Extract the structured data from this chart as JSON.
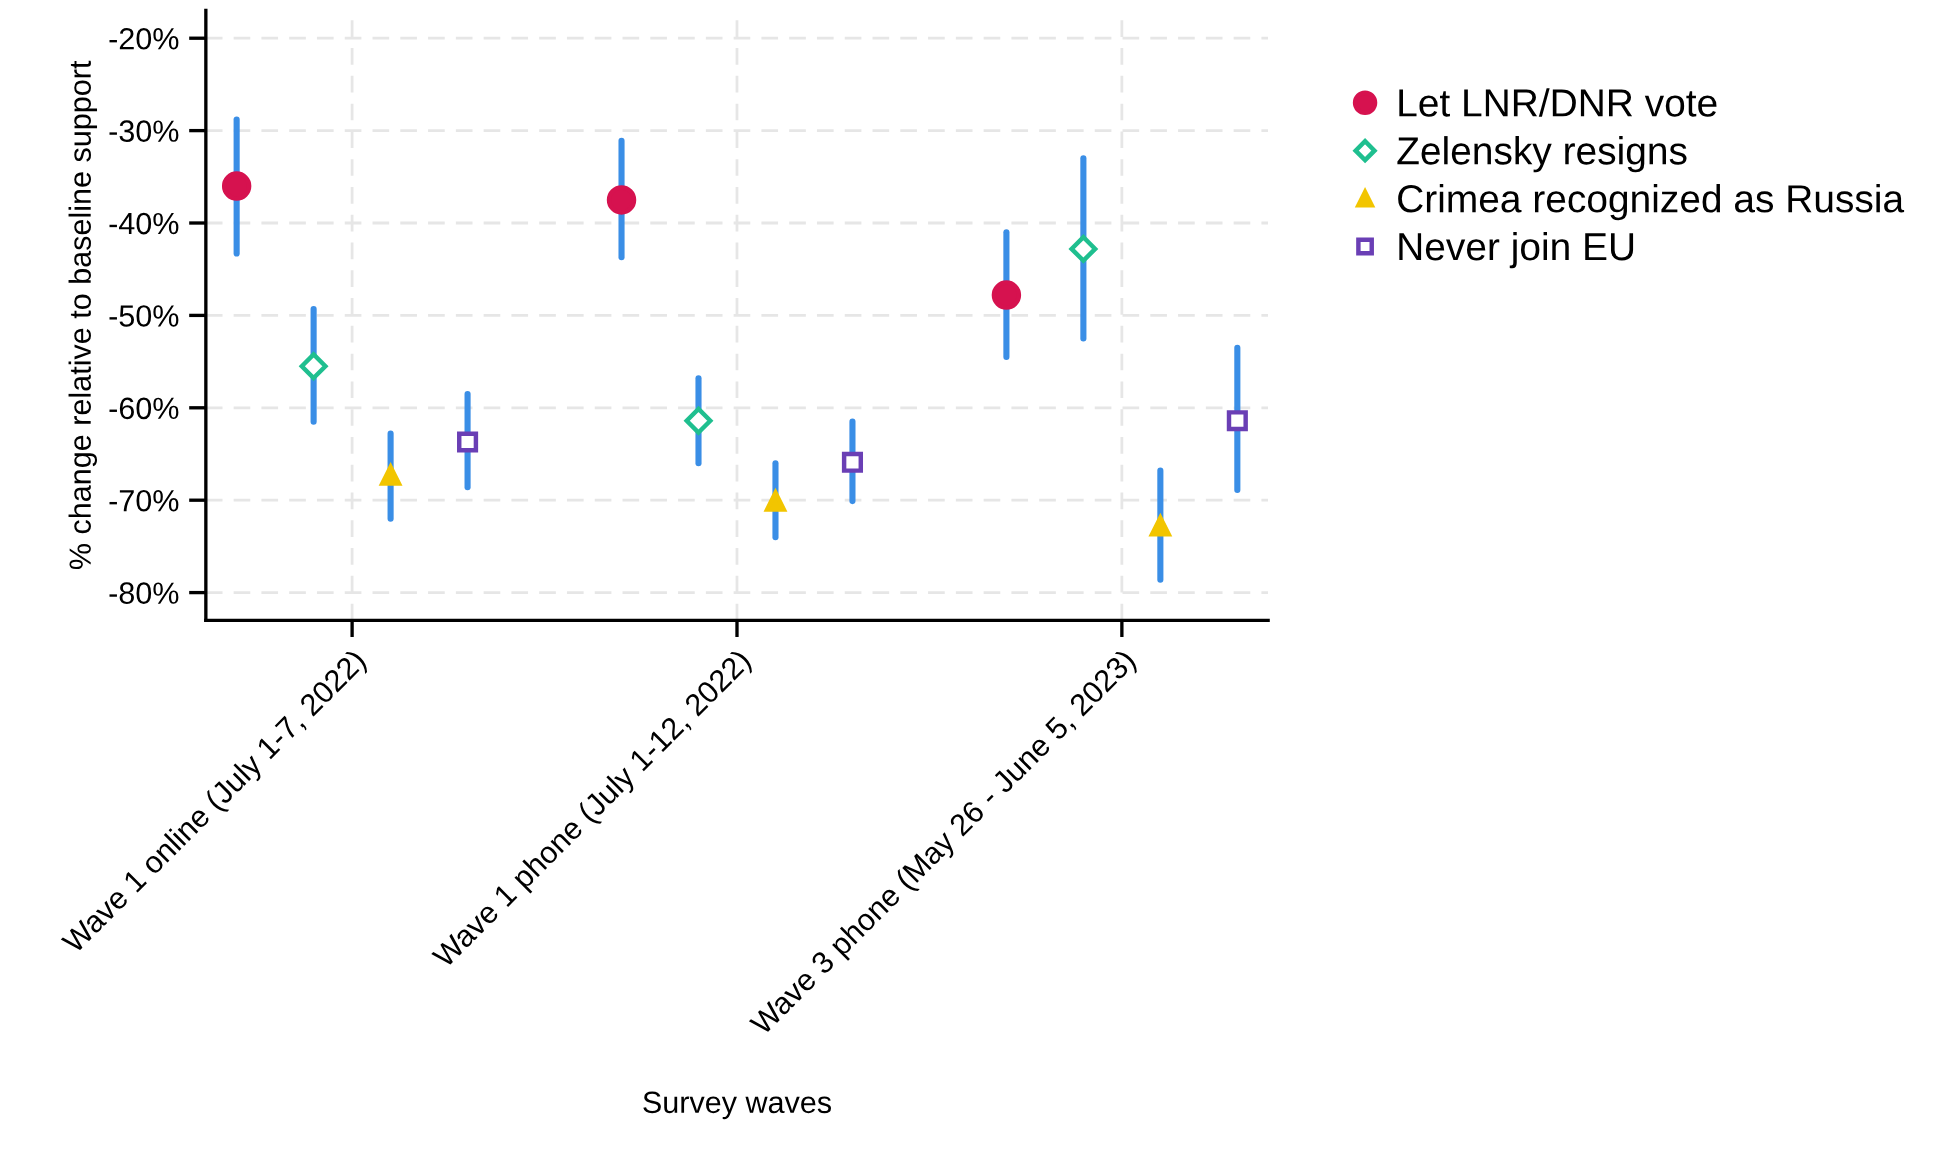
{
  "chart_data": {
    "type": "scatter",
    "xlabel": "Survey waves",
    "ylabel": "% change relative to baseline support",
    "categories": [
      "Wave 1 online (July 1-7, 2022)",
      "Wave 1 phone (July 1-12, 2022)",
      "Wave 3 phone (May 26 - June 5, 2023)"
    ],
    "series": [
      {
        "name": "Let LNR/DNR vote",
        "color": "#d6124f",
        "marker": "circle",
        "values": [
          -36.0,
          -37.5,
          -47.8
        ],
        "errors": [
          [
            -43.3,
            -28.8
          ],
          [
            -43.7,
            -31.1
          ],
          [
            -54.5,
            -41.0
          ]
        ]
      },
      {
        "name": "Zelensky resigns",
        "color": "#1fbf8f",
        "marker": "diamond",
        "values": [
          -55.5,
          -61.4,
          -42.8
        ],
        "errors": [
          [
            -61.5,
            -49.3
          ],
          [
            -66.0,
            -56.8
          ],
          [
            -52.5,
            -33.0
          ]
        ]
      },
      {
        "name": "Crimea recognized as Russia",
        "color": "#f2c500",
        "marker": "triangle",
        "values": [
          -67.3,
          -70.1,
          -72.8
        ],
        "errors": [
          [
            -72.0,
            -62.8
          ],
          [
            -74.0,
            -66.0
          ],
          [
            -78.6,
            -66.8
          ]
        ]
      },
      {
        "name": "Never join EU",
        "color": "#6a3fb5",
        "marker": "square",
        "values": [
          -63.7,
          -65.9,
          -61.4
        ],
        "errors": [
          [
            -68.6,
            -58.5
          ],
          [
            -70.1,
            -61.5
          ],
          [
            -68.9,
            -53.5
          ]
        ]
      }
    ],
    "ylim": [
      -83,
      -17
    ],
    "yticks": [
      {
        "value": -80,
        "label": "-80%"
      },
      {
        "value": -70,
        "label": "-70%"
      },
      {
        "value": -60,
        "label": "-60%"
      },
      {
        "value": -50,
        "label": "-50%"
      },
      {
        "value": -40,
        "label": "-40%"
      },
      {
        "value": -30,
        "label": "-30%"
      },
      {
        "value": -20,
        "label": "-20%"
      }
    ],
    "grid": true,
    "legend": "top right"
  }
}
